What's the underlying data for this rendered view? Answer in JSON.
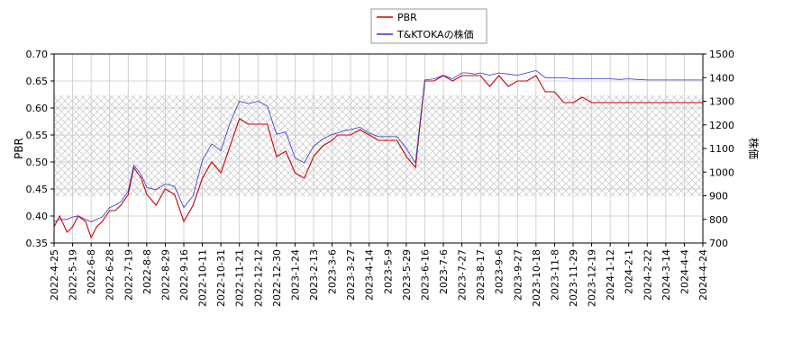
{
  "chart_data": {
    "type": "line",
    "title": "",
    "legend": {
      "placement": "top-center",
      "entries": [
        "PBR",
        "T&KTOKAの株価"
      ]
    },
    "grid": true,
    "hatched_band": {
      "left_axis_range": [
        0.4363,
        0.6238
      ],
      "right_axis_range": [
        875,
        1235
      ]
    },
    "x_tick_labels": [
      "2022-4-25",
      "2022-5-19",
      "2022-6-8",
      "2022-6-28",
      "2022-7-19",
      "2022-8-8",
      "2022-8-29",
      "2022-9-16",
      "2022-10-11",
      "2022-10-31",
      "2022-11-21",
      "2022-12-12",
      "2022-12-30",
      "2023-1-24",
      "2023-2-13",
      "2023-3-6",
      "2023-3-27",
      "2023-4-14",
      "2023-5-9",
      "2023-5-29",
      "2023-6-16",
      "2023-7-6",
      "2023-7-27",
      "2023-8-17",
      "2023-9-6",
      "2023-9-27",
      "2023-10-18",
      "2023-11-8",
      "2023-11-29",
      "2023-12-19",
      "2024-1-12",
      "2024-2-1",
      "2024-2-22",
      "2024-3-14",
      "2024-4-4",
      "2024-4-24"
    ],
    "y_left": {
      "label": "PBR",
      "range": [
        0.35,
        0.7
      ],
      "ticks": [
        "0.35",
        "0.40",
        "0.45",
        "0.50",
        "0.55",
        "0.60",
        "0.65",
        "0.70"
      ]
    },
    "y_right": {
      "label": "株価",
      "range": [
        700,
        1500
      ],
      "ticks": [
        "700",
        "800",
        "900",
        "1000",
        "1100",
        "1200",
        "1300",
        "1400",
        "1500"
      ]
    },
    "series": [
      {
        "name": "PBR",
        "axis": "left",
        "color": "#cc0000",
        "x_index": [
          0,
          0.3,
          0.7,
          1,
          1.3,
          1.7,
          2,
          2.3,
          2.6,
          3,
          3.3,
          3.6,
          4,
          4.3,
          4.7,
          5,
          5.5,
          6,
          6.5,
          7,
          7.5,
          8,
          8.5,
          9,
          9.5,
          10,
          10.5,
          11,
          11.5,
          12,
          12.5,
          13,
          13.5,
          14,
          14.5,
          15,
          15.3,
          15.6,
          16,
          16.5,
          17,
          17.5,
          18,
          18.5,
          19,
          19.5,
          20,
          20.5,
          21,
          21.5,
          22,
          22.3,
          22.7,
          23,
          23.5,
          24,
          24.5,
          25,
          25.5,
          26,
          26.5,
          27,
          27.5,
          28,
          28.5,
          29,
          29.5,
          30,
          30.5,
          31,
          31.5,
          32,
          32.5,
          33,
          33.5,
          34,
          34.5,
          35
        ],
        "values": [
          0.38,
          0.4,
          0.37,
          0.38,
          0.4,
          0.39,
          0.36,
          0.38,
          0.39,
          0.41,
          0.41,
          0.42,
          0.44,
          0.49,
          0.47,
          0.44,
          0.42,
          0.45,
          0.44,
          0.39,
          0.42,
          0.47,
          0.5,
          0.48,
          0.53,
          0.58,
          0.57,
          0.57,
          0.57,
          0.51,
          0.52,
          0.48,
          0.47,
          0.51,
          0.53,
          0.54,
          0.55,
          0.55,
          0.55,
          0.56,
          0.55,
          0.54,
          0.54,
          0.54,
          0.51,
          0.49,
          0.65,
          0.65,
          0.66,
          0.65,
          0.66,
          0.66,
          0.66,
          0.66,
          0.64,
          0.66,
          0.64,
          0.65,
          0.65,
          0.66,
          0.63,
          0.63,
          0.61,
          0.61,
          0.62,
          0.61,
          0.61,
          0.61,
          0.61,
          0.61,
          0.61,
          0.61,
          0.61,
          0.61,
          0.61,
          0.61,
          0.61,
          0.61
        ]
      },
      {
        "name": "T&KTOKAの株価",
        "axis": "right",
        "color": "#3333cc",
        "x_index": [
          0,
          0.3,
          0.7,
          1,
          1.3,
          1.7,
          2,
          2.3,
          2.6,
          3,
          3.3,
          3.6,
          4,
          4.3,
          4.7,
          5,
          5.5,
          6,
          6.5,
          7,
          7.5,
          8,
          8.5,
          9,
          9.5,
          10,
          10.5,
          11,
          11.5,
          12,
          12.5,
          13,
          13.5,
          14,
          14.5,
          15,
          15.3,
          15.6,
          16,
          16.5,
          17,
          17.5,
          18,
          18.5,
          19,
          19.5,
          20,
          20.5,
          21,
          21.5,
          22,
          22.3,
          22.7,
          23,
          23.5,
          24,
          24.5,
          25,
          25.5,
          26,
          26.5,
          27,
          27.5,
          28,
          28.5,
          29,
          29.5,
          30,
          30.5,
          31,
          31.5,
          32,
          32.5,
          33,
          33.5,
          34,
          34.5,
          35
        ],
        "values": [
          790,
          800,
          800,
          810,
          815,
          800,
          790,
          800,
          810,
          850,
          860,
          875,
          920,
          1030,
          990,
          935,
          925,
          950,
          940,
          850,
          900,
          1050,
          1120,
          1090,
          1210,
          1300,
          1290,
          1300,
          1280,
          1160,
          1170,
          1060,
          1040,
          1110,
          1140,
          1160,
          1165,
          1175,
          1180,
          1190,
          1165,
          1150,
          1150,
          1150,
          1100,
          1040,
          1390,
          1395,
          1410,
          1395,
          1420,
          1420,
          1415,
          1420,
          1410,
          1420,
          1415,
          1410,
          1420,
          1430,
          1400,
          1400,
          1400,
          1395,
          1395,
          1395,
          1395,
          1395,
          1392,
          1395,
          1392,
          1390,
          1390,
          1390,
          1390,
          1390,
          1390,
          1390
        ]
      }
    ]
  }
}
